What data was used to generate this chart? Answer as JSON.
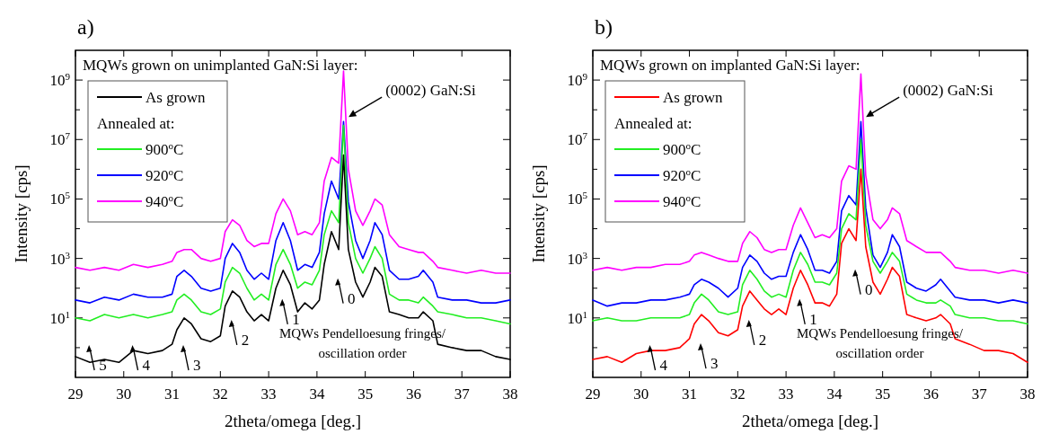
{
  "chart_data": [
    {
      "type": "line",
      "title": "a)",
      "xlabel": "2theta/omega [deg.]",
      "ylabel": "Intensity [cps]",
      "legend_title": "Annealed at:",
      "legend": "top left",
      "log": "y",
      "grid": false,
      "xlim": [
        29,
        38
      ],
      "xticks": [
        29,
        30,
        31,
        32,
        33,
        34,
        35,
        36,
        37,
        38
      ],
      "ylim": [
        0.1,
        10000000000
      ],
      "yticks": [
        {
          "value": 1,
          "label": null
        },
        {
          "value": 10,
          "label": "10$^{1}$"
        },
        {
          "value": 100,
          "label": null
        },
        {
          "value": 1000,
          "label": "10$^{3}$"
        },
        {
          "value": 10000,
          "label": null
        },
        {
          "value": 100000,
          "label": "10$^{5}$"
        },
        {
          "value": 1000000,
          "label": null
        },
        {
          "value": 10000000,
          "label": "10$^{7}$"
        },
        {
          "value": 100000000,
          "label": null
        },
        {
          "value": 1000000000,
          "label": "10$^{9}$"
        }
      ],
      "x": [
        29,
        29.3,
        29.6,
        29.9,
        30.2,
        30.5,
        30.8,
        31.0,
        31.1,
        31.25,
        31.4,
        31.6,
        31.8,
        32.0,
        32.1,
        32.25,
        32.4,
        32.55,
        32.7,
        32.85,
        33.0,
        33.15,
        33.3,
        33.45,
        33.6,
        33.75,
        33.9,
        34.05,
        34.15,
        34.3,
        34.45,
        34.55,
        34.65,
        34.8,
        34.95,
        35.1,
        35.2,
        35.35,
        35.5,
        35.7,
        35.9,
        36.1,
        36.2,
        36.4,
        36.5,
        36.8,
        37.1,
        37.4,
        37.7,
        38
      ],
      "series": [
        {
          "name": "As grown",
          "color": "#000000",
          "values": [
            0.5,
            0.32,
            0.4,
            0.32,
            0.8,
            0.63,
            0.8,
            1.3,
            4,
            10,
            6.3,
            2,
            1.6,
            2.5,
            25,
            80,
            50,
            16,
            8,
            13,
            8,
            100,
            400,
            130,
            16,
            32,
            20,
            40,
            630,
            8000,
            2000,
            3000000,
            2000,
            160,
            50,
            160,
            500,
            250,
            16,
            13,
            10,
            10,
            16,
            8,
            1.3,
            1,
            0.8,
            0.8,
            0.5,
            0.4
          ]
        },
        {
          "name": "900$^{o}$C",
          "color": "#22ee22",
          "values": [
            10,
            8,
            13,
            10,
            13,
            10,
            13,
            16,
            40,
            63,
            40,
            16,
            13,
            20,
            160,
            500,
            320,
            100,
            40,
            63,
            40,
            630,
            2000,
            630,
            100,
            160,
            130,
            400,
            6300,
            40000,
            16000,
            30000000,
            16000,
            1000,
            320,
            1000,
            2500,
            1000,
            63,
            40,
            40,
            32,
            50,
            25,
            16,
            13,
            10,
            10,
            8,
            6.3
          ]
        },
        {
          "name": "920$^{o}$C",
          "color": "#0000ff",
          "values": [
            40,
            32,
            50,
            40,
            63,
            50,
            50,
            63,
            250,
            400,
            250,
            100,
            80,
            100,
            1000,
            3200,
            1600,
            400,
            200,
            320,
            200,
            4000,
            16000,
            4000,
            400,
            630,
            500,
            1600,
            32000,
            400000,
            100000,
            40000000,
            80000,
            4000,
            1000,
            4000,
            16000,
            6300,
            400,
            200,
            200,
            250,
            400,
            160,
            50,
            40,
            40,
            32,
            32,
            40
          ]
        },
        {
          "name": "940$^{o}$C",
          "color": "#ff00ff",
          "values": [
            500,
            400,
            500,
            400,
            630,
            500,
            630,
            800,
            1600,
            2000,
            2000,
            1000,
            800,
            1000,
            8000,
            20000,
            13000,
            4000,
            2500,
            3200,
            3200,
            32000,
            100000,
            40000,
            6300,
            8000,
            6300,
            16000,
            400000,
            2500000,
            1600000,
            2000000000,
            1000000,
            40000,
            13000,
            40000,
            100000,
            63000,
            6300,
            2500,
            2000,
            1600,
            1600,
            800,
            500,
            400,
            320,
            400,
            320,
            320
          ]
        }
      ],
      "annotations": [
        "MQWs grown on unimplanted GaN:Si layer:",
        "MQWs Pendelloesung fringes/\noscillation order",
        {
          "text": "(0002) GaN:Si",
          "x": 34.6,
          "y": 50000000
        },
        {
          "text": "0",
          "x": 34.45,
          "y": 2000
        },
        {
          "text": "1",
          "x": 33.3,
          "y": 400
        },
        {
          "text": "2",
          "x": 32.25,
          "y": 80
        },
        {
          "text": "3",
          "x": 31.25,
          "y": 10
        },
        {
          "text": "4",
          "x": 30.2,
          "y": 0.8
        },
        {
          "text": "5",
          "x": 29.3,
          "y": 0.32
        }
      ]
    },
    {
      "type": "line",
      "title": "b)",
      "xlabel": "2theta/omega [deg.]",
      "ylabel": "Intensity [cps]",
      "legend_title": "Annealed at:",
      "legend": "top left",
      "log": "y",
      "grid": false,
      "xlim": [
        29,
        38
      ],
      "xticks": [
        29,
        30,
        31,
        32,
        33,
        34,
        35,
        36,
        37,
        38
      ],
      "ylim": [
        0.1,
        10000000000
      ],
      "yticks": [
        {
          "value": 1,
          "label": null
        },
        {
          "value": 10,
          "label": "10$^{1}$"
        },
        {
          "value": 100,
          "label": null
        },
        {
          "value": 1000,
          "label": "10$^{3}$"
        },
        {
          "value": 10000,
          "label": null
        },
        {
          "value": 100000,
          "label": "10$^{5}$"
        },
        {
          "value": 1000000,
          "label": null
        },
        {
          "value": 10000000,
          "label": "10$^{7}$"
        },
        {
          "value": 100000000,
          "label": null
        },
        {
          "value": 1000000000,
          "label": "10$^{9}$"
        }
      ],
      "x": [
        29,
        29.3,
        29.6,
        29.9,
        30.2,
        30.5,
        30.8,
        31.0,
        31.1,
        31.25,
        31.4,
        31.6,
        31.8,
        32.0,
        32.1,
        32.25,
        32.4,
        32.55,
        32.7,
        32.85,
        33.0,
        33.15,
        33.3,
        33.45,
        33.6,
        33.75,
        33.9,
        34.05,
        34.15,
        34.3,
        34.45,
        34.55,
        34.65,
        34.8,
        34.95,
        35.1,
        35.2,
        35.35,
        35.5,
        35.7,
        35.9,
        36.1,
        36.2,
        36.4,
        36.5,
        36.8,
        37.1,
        37.4,
        37.7,
        38
      ],
      "series": [
        {
          "name": "As grown",
          "color": "#ff0000",
          "values": [
            0.4,
            0.5,
            0.32,
            0.63,
            0.8,
            0.8,
            1,
            2,
            6.3,
            13,
            8,
            3.2,
            2.5,
            4,
            25,
            80,
            40,
            20,
            13,
            20,
            13,
            100,
            400,
            130,
            32,
            32,
            25,
            63,
            3200,
            10000,
            4000,
            1000000,
            2500,
            160,
            63,
            200,
            500,
            250,
            13,
            10,
            8,
            10,
            13,
            6.3,
            2,
            1.3,
            0.8,
            0.8,
            0.63,
            0.32
          ]
        },
        {
          "name": "900$^{o}$C",
          "color": "#22ee22",
          "values": [
            8,
            10,
            8,
            8,
            10,
            10,
            10,
            13,
            32,
            63,
            40,
            16,
            13,
            16,
            130,
            400,
            200,
            80,
            50,
            63,
            50,
            400,
            1600,
            630,
            160,
            160,
            130,
            320,
            10000,
            32000,
            20000,
            10000000,
            13000,
            800,
            320,
            800,
            1600,
            800,
            63,
            40,
            32,
            32,
            40,
            25,
            13,
            10,
            10,
            8,
            8,
            6.3
          ]
        },
        {
          "name": "920$^{o}$C",
          "color": "#0000ff",
          "values": [
            40,
            25,
            32,
            32,
            40,
            40,
            50,
            63,
            130,
            200,
            160,
            100,
            50,
            100,
            500,
            1300,
            800,
            320,
            200,
            250,
            250,
            1600,
            6300,
            2000,
            400,
            400,
            320,
            800,
            40000,
            130000,
            63000,
            40000000,
            50000,
            1300,
            500,
            1600,
            6300,
            2500,
            160,
            100,
            80,
            130,
            200,
            80,
            50,
            40,
            40,
            32,
            40,
            32
          ]
        },
        {
          "name": "940$^{o}$C",
          "color": "#ff00ff",
          "values": [
            400,
            500,
            400,
            500,
            500,
            630,
            630,
            800,
            1300,
            1600,
            1300,
            1000,
            800,
            800,
            3200,
            8000,
            5000,
            2000,
            1600,
            2000,
            2000,
            13000,
            50000,
            16000,
            5000,
            6300,
            5000,
            10000,
            400000,
            1300000,
            1000000,
            1600000000,
            630000,
            20000,
            10000,
            20000,
            50000,
            32000,
            4000,
            2500,
            1600,
            1600,
            1600,
            800,
            500,
            400,
            400,
            320,
            400,
            320
          ]
        }
      ],
      "annotations": [
        "MQWs grown on implanted GaN:Si layer:",
        "MQWs Pendelloesung fringes/\noscillation order",
        {
          "text": "(0002) GaN:Si",
          "x": 34.6,
          "y": 50000000
        },
        {
          "text": "0",
          "x": 34.45,
          "y": 4000
        },
        {
          "text": "1",
          "x": 33.3,
          "y": 400
        },
        {
          "text": "2",
          "x": 32.25,
          "y": 80
        },
        {
          "text": "3",
          "x": 31.25,
          "y": 13
        },
        {
          "text": "4",
          "x": 30.2,
          "y": 0.8
        }
      ]
    }
  ]
}
